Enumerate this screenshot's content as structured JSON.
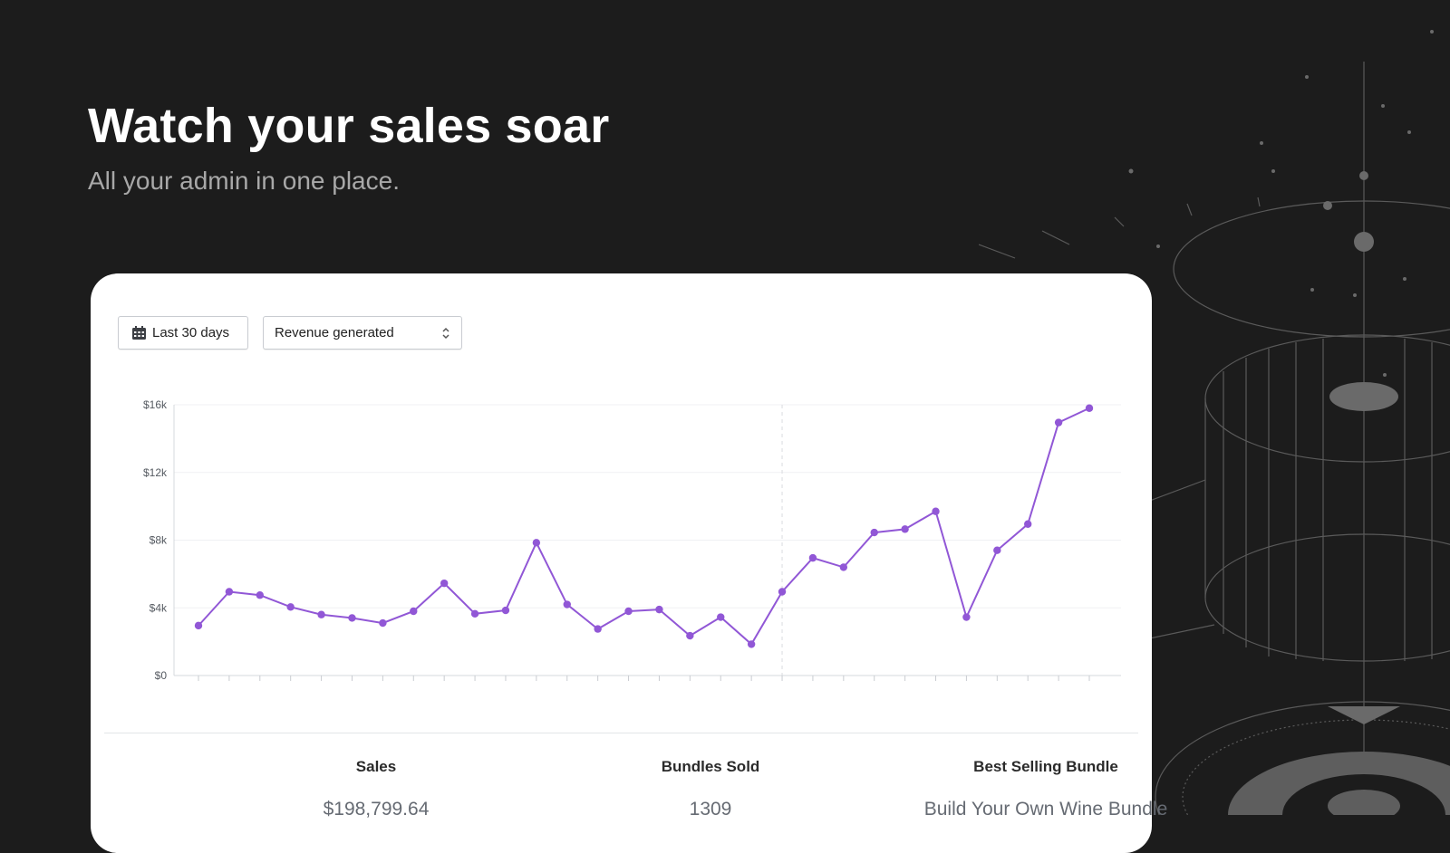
{
  "hero": {
    "title": "Watch your sales soar",
    "subtitle": "All your admin in one place."
  },
  "controls": {
    "date_range_label": "Last 30 days",
    "date_icon": "calendar-icon",
    "metric_select_value": "Revenue generated",
    "metric_select_icon": "select-chevrons-icon"
  },
  "chart_data": {
    "type": "line",
    "title": "",
    "xlabel": "",
    "ylabel": "",
    "ylim": [
      0,
      16000
    ],
    "y_ticks": [
      "$0",
      "$4k",
      "$8k",
      "$12k",
      "$16k"
    ],
    "y_tick_values": [
      0,
      4000,
      8000,
      12000,
      16000
    ],
    "grid": true,
    "line_color": "#9157d6",
    "x": [
      1,
      2,
      3,
      4,
      5,
      6,
      7,
      8,
      9,
      10,
      11,
      12,
      13,
      14,
      15,
      16,
      17,
      18,
      19,
      20,
      21,
      22,
      23,
      24,
      25,
      26,
      27,
      28,
      29,
      30
    ],
    "series": [
      {
        "values": [
          2950,
          4950,
          4750,
          4050,
          3600,
          3400,
          3100,
          3800,
          5450,
          3650,
          3850,
          7850,
          4200,
          2750,
          3800,
          3900,
          2350,
          3450,
          1850,
          4950,
          6950,
          6400,
          8450,
          8650,
          9700,
          3450,
          7400,
          8950,
          14950,
          15800
        ]
      }
    ],
    "marker_x": 20
  },
  "stats": [
    {
      "label": "Sales",
      "value": "$198,799.64"
    },
    {
      "label": "Bundles Sold",
      "value": "1309"
    },
    {
      "label": "Best Selling Bundle",
      "value": "Build Your Own Wine Bundle"
    }
  ]
}
